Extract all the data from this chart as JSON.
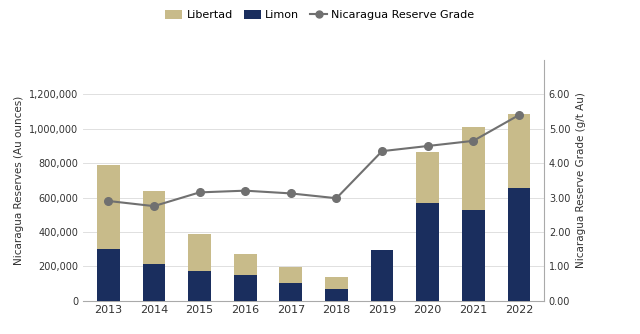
{
  "years": [
    2013,
    2014,
    2015,
    2016,
    2017,
    2018,
    2019,
    2020,
    2021,
    2022
  ],
  "limon": [
    300000,
    215000,
    170000,
    150000,
    105000,
    70000,
    295000,
    570000,
    530000,
    655000
  ],
  "libertad": [
    490000,
    425000,
    220000,
    120000,
    90000,
    70000,
    0,
    295000,
    480000,
    430000
  ],
  "reserve_grade": [
    2.9,
    2.75,
    3.15,
    3.2,
    3.12,
    2.98,
    4.35,
    4.5,
    4.65,
    5.4
  ],
  "limon_color": "#1a2e5e",
  "libertad_color": "#c8bb8a",
  "grade_color": "#707070",
  "background_color": "#ffffff",
  "ylabel_left": "Nicaragua Reserves (Au ounces)",
  "ylabel_right": "Nicaragua Reserve Grade (g/t Au)",
  "ylim_left": [
    0,
    1400000
  ],
  "ylim_right": [
    0,
    7.0
  ],
  "yticks_left": [
    0,
    200000,
    400000,
    600000,
    800000,
    1000000,
    1200000
  ],
  "yticks_right": [
    0.0,
    1.0,
    2.0,
    3.0,
    4.0,
    5.0,
    6.0
  ],
  "grid_color": "#e0e0e0"
}
